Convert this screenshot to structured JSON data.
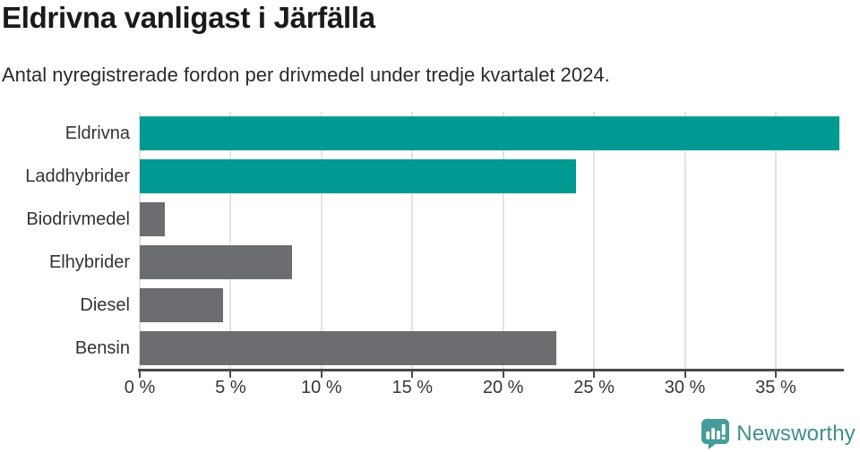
{
  "chart": {
    "title": "Eldrivna vanligast i Järfälla",
    "subtitle": "Antal nyregistrerade fordon per drivmedel under tredje kvartalet 2024."
  },
  "chart_data": {
    "type": "bar",
    "orientation": "horizontal",
    "title": "Eldrivna vanligast i Järfälla",
    "subtitle": "Antal nyregistrerade fordon per drivmedel under tredje kvartalet 2024.",
    "categories": [
      "Eldrivna",
      "Laddhybrider",
      "Biodrivmedel",
      "Elhybrider",
      "Diesel",
      "Bensin"
    ],
    "values": [
      38.5,
      24.0,
      1.4,
      8.4,
      4.6,
      22.9
    ],
    "unit": "%",
    "xlim": [
      0,
      38.7
    ],
    "xticks": [
      0,
      5,
      10,
      15,
      20,
      25,
      30,
      35
    ],
    "xtick_labels": [
      "0 %",
      "5 %",
      "10 %",
      "15 %",
      "20 %",
      "25 %",
      "30 %",
      "35 %"
    ],
    "grid": "vertical",
    "legend": "none",
    "bar_colors": [
      "#009a93",
      "#009a93",
      "#6c6d71",
      "#6c6d71",
      "#6c6d71",
      "#6c6d71"
    ],
    "highlight_color": "#009a93",
    "default_color": "#6c6d71",
    "gridline_color": "#e3e3e3",
    "axis_color": "#4a4a4a"
  },
  "footer": {
    "brand": "Newsworthy",
    "brand_color": "#3e8f8d",
    "icon_color": "#479b98"
  }
}
